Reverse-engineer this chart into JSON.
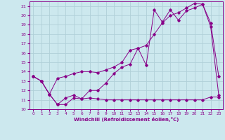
{
  "xlabel": "Windchill (Refroidissement éolien,°C)",
  "bg_color": "#cce8ee",
  "grid_color": "#b0d0d8",
  "line_color": "#880088",
  "xlim": [
    -0.5,
    23.5
  ],
  "ylim": [
    10,
    21.5
  ],
  "yticks": [
    10,
    11,
    12,
    13,
    14,
    15,
    16,
    17,
    18,
    19,
    20,
    21
  ],
  "xticks": [
    0,
    1,
    2,
    3,
    4,
    5,
    6,
    7,
    8,
    9,
    10,
    11,
    12,
    13,
    14,
    15,
    16,
    17,
    18,
    19,
    20,
    21,
    22,
    23
  ],
  "line1_x": [
    0,
    1,
    2,
    3,
    4,
    5,
    6,
    7,
    8,
    9,
    10,
    11,
    12,
    13,
    14,
    15,
    16,
    17,
    18,
    19,
    20,
    21,
    22,
    23
  ],
  "line1_y": [
    13.5,
    13.0,
    11.6,
    10.5,
    10.5,
    11.2,
    11.1,
    11.2,
    11.1,
    11.0,
    11.0,
    11.0,
    11.0,
    11.0,
    11.0,
    11.0,
    11.0,
    11.0,
    11.0,
    11.0,
    11.0,
    11.0,
    11.3,
    11.3
  ],
  "line2_x": [
    0,
    1,
    2,
    3,
    4,
    5,
    6,
    7,
    8,
    9,
    10,
    11,
    12,
    13,
    14,
    15,
    16,
    17,
    18,
    19,
    20,
    21,
    22,
    23
  ],
  "line2_y": [
    13.5,
    13.0,
    11.6,
    13.3,
    13.5,
    13.8,
    14.0,
    14.0,
    13.9,
    14.2,
    14.5,
    15.0,
    16.3,
    16.5,
    16.8,
    18.0,
    19.2,
    20.0,
    20.3,
    20.8,
    21.3,
    21.2,
    18.8,
    11.5
  ],
  "line3_x": [
    0,
    1,
    2,
    3,
    4,
    5,
    6,
    7,
    8,
    9,
    10,
    11,
    12,
    13,
    14,
    15,
    16,
    17,
    18,
    19,
    20,
    21,
    22,
    23
  ],
  "line3_y": [
    13.5,
    13.0,
    11.6,
    10.5,
    11.2,
    11.5,
    11.1,
    12.0,
    12.0,
    12.8,
    13.8,
    14.5,
    14.8,
    16.5,
    14.7,
    20.6,
    19.3,
    20.6,
    19.5,
    20.5,
    20.8,
    21.2,
    19.2,
    13.5
  ]
}
